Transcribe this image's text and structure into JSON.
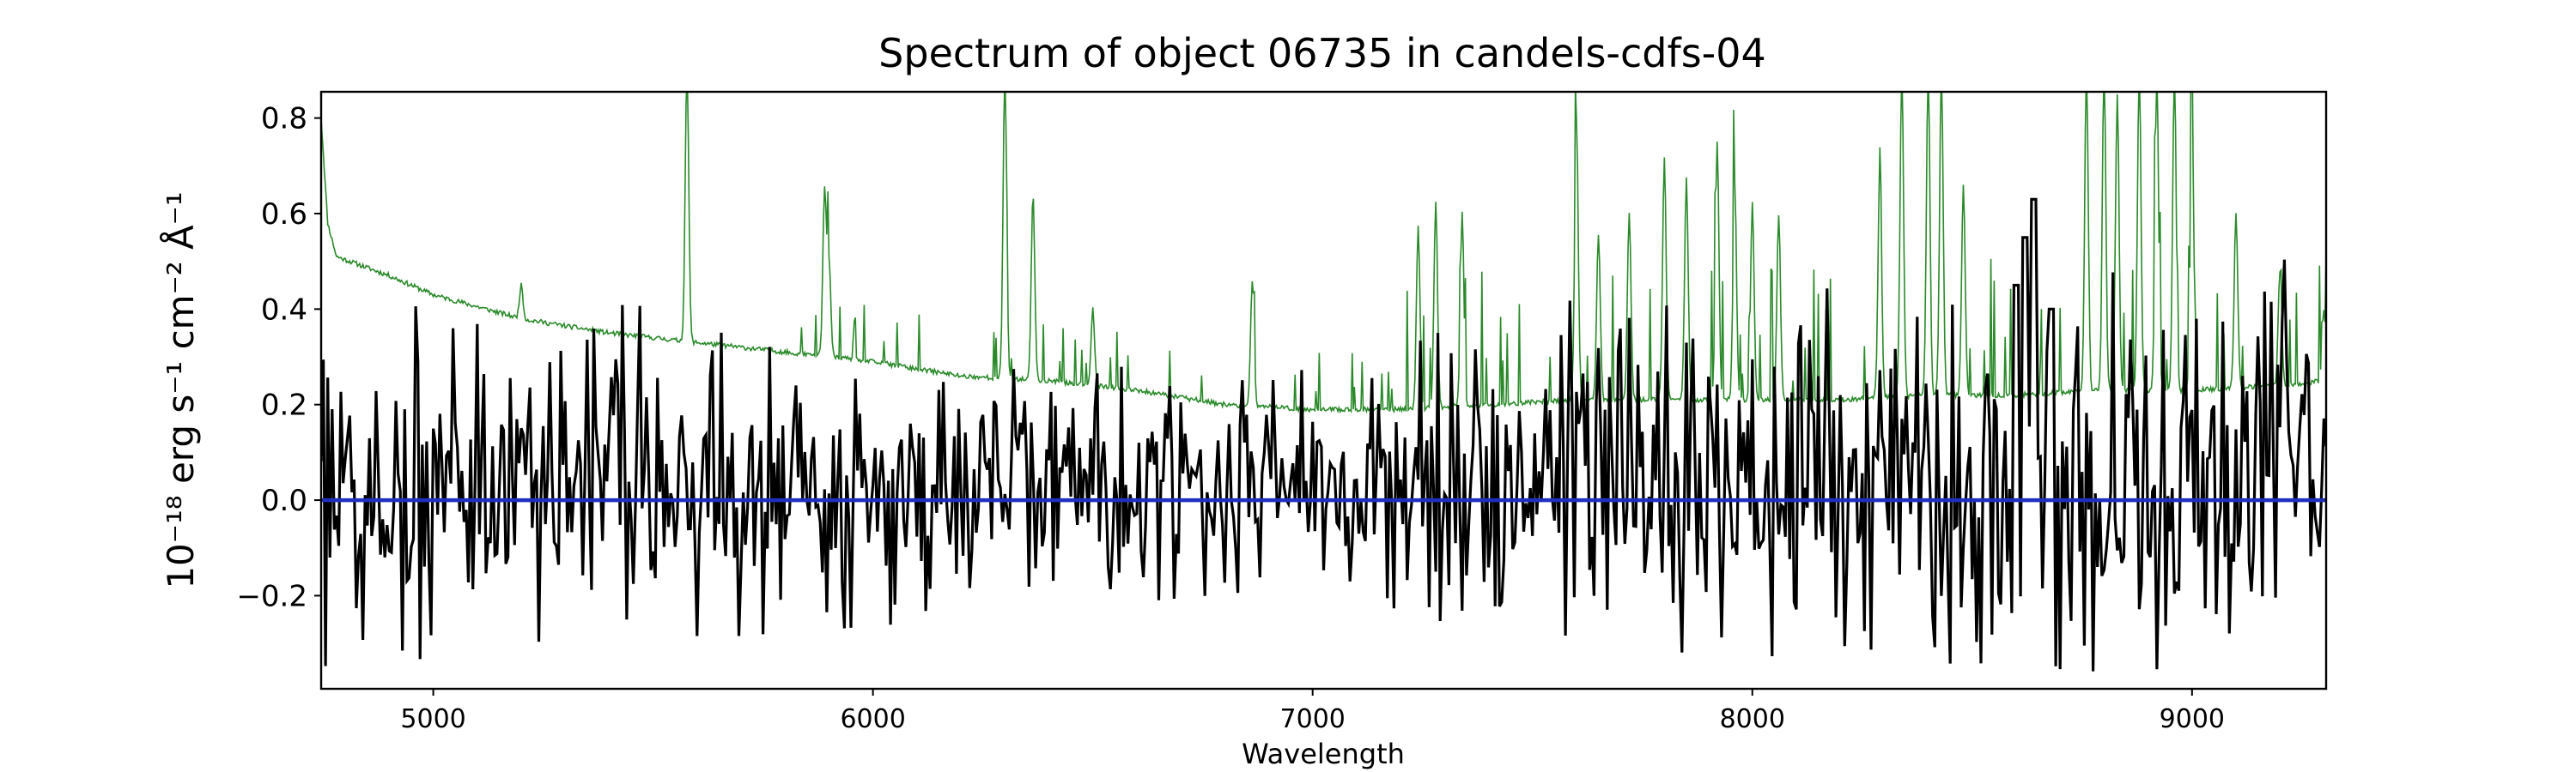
{
  "chart_data": {
    "type": "line",
    "title": "Spectrum of object 06735 in candels-cdfs-04",
    "xlabel": "Wavelength",
    "ylabel": "10⁻¹⁸ erg s⁻¹ cm⁻² Å⁻¹",
    "xlim": [
      4745,
      9305
    ],
    "ylim": [
      -0.395,
      0.855
    ],
    "x_ticks": [
      5000,
      6000,
      7000,
      8000,
      9000
    ],
    "y_ticks": [
      -0.2,
      0.0,
      0.2,
      0.4,
      0.6,
      0.8
    ],
    "y_tick_labels": [
      "−0.2",
      "0.0",
      "0.2",
      "0.4",
      "0.6",
      "0.8"
    ],
    "grid": false,
    "legend": "none",
    "series": [
      {
        "color": "#2a8a2a",
        "width": "thin",
        "continuum": [
          [
            4745,
            0.8
          ],
          [
            4760,
            0.58
          ],
          [
            4780,
            0.51
          ],
          [
            4900,
            0.47
          ],
          [
            5000,
            0.43
          ],
          [
            5200,
            0.38
          ],
          [
            5400,
            0.35
          ],
          [
            5600,
            0.33
          ],
          [
            5800,
            0.31
          ],
          [
            6000,
            0.29
          ],
          [
            6200,
            0.26
          ],
          [
            6400,
            0.25
          ],
          [
            6600,
            0.23
          ],
          [
            6800,
            0.2
          ],
          [
            7000,
            0.19
          ],
          [
            7200,
            0.19
          ],
          [
            7400,
            0.2
          ],
          [
            7600,
            0.21
          ],
          [
            7800,
            0.21
          ],
          [
            8000,
            0.21
          ],
          [
            8200,
            0.21
          ],
          [
            8400,
            0.22
          ],
          [
            8600,
            0.22
          ],
          [
            8800,
            0.23
          ],
          [
            9000,
            0.23
          ],
          [
            9200,
            0.24
          ],
          [
            9305,
            0.25
          ]
        ],
        "peaks": [
          [
            5200,
            0.45
          ],
          [
            5577,
            0.9
          ],
          [
            5890,
            0.65
          ],
          [
            5900,
            0.5
          ],
          [
            6300,
            0.9
          ],
          [
            6364,
            0.64
          ],
          [
            6500,
            0.4
          ],
          [
            6863,
            0.46
          ],
          [
            7240,
            0.57
          ],
          [
            7280,
            0.62
          ],
          [
            7340,
            0.6
          ],
          [
            7600,
            0.8
          ],
          [
            7650,
            0.56
          ],
          [
            7720,
            0.6
          ],
          [
            7800,
            0.72
          ],
          [
            7850,
            0.68
          ],
          [
            7920,
            0.75
          ],
          [
            7960,
            0.66
          ],
          [
            8000,
            0.62
          ],
          [
            8060,
            0.6
          ],
          [
            8290,
            0.7
          ],
          [
            8340,
            0.9
          ],
          [
            8400,
            0.9
          ],
          [
            8430,
            0.9
          ],
          [
            8480,
            0.66
          ],
          [
            8760,
            0.9
          ],
          [
            8800,
            0.9
          ],
          [
            8830,
            0.85
          ],
          [
            8880,
            0.9
          ],
          [
            8920,
            0.9
          ],
          [
            8960,
            0.9
          ],
          [
            9000,
            0.8
          ],
          [
            9100,
            0.6
          ],
          [
            9200,
            0.48
          ],
          [
            9300,
            0.4
          ]
        ]
      },
      {
        "color": "#000000",
        "width": "thick",
        "description_values": "noisy flux, sigma ~0.17, range approx -0.33 to 0.63",
        "noise_seed": 6735,
        "noise_sigma": [
          [
            4745,
            0.18
          ],
          [
            6000,
            0.14
          ],
          [
            7000,
            0.1
          ],
          [
            7500,
            0.16
          ],
          [
            8600,
            0.18
          ],
          [
            9305,
            0.2
          ]
        ],
        "mean": 0.03,
        "features": [
          [
            8640,
            0.63
          ],
          [
            8620,
            0.55
          ],
          [
            8680,
            0.4
          ],
          [
            8600,
            0.45
          ]
        ]
      },
      {
        "color": "#1f2fbf",
        "width": "thick",
        "constant": 0.0
      }
    ]
  }
}
